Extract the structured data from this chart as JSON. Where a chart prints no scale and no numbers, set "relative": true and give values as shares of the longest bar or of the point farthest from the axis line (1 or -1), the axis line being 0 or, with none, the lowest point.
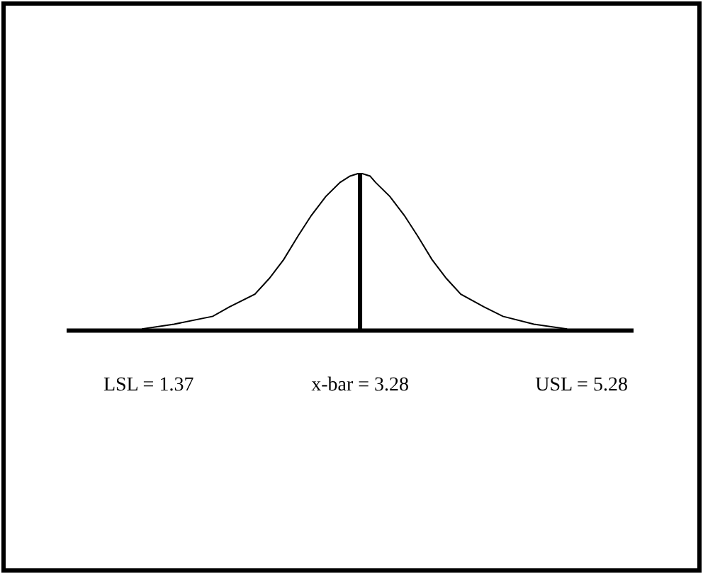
{
  "chart_data": {
    "type": "line",
    "relative": true,
    "tick_labels": "x",
    "x": [
      1.31,
      1.6,
      1.95,
      2.1,
      2.33,
      2.46,
      2.59,
      2.72,
      2.84,
      2.97,
      3.1,
      3.19,
      3.28,
      3.37,
      3.42,
      3.55,
      3.68,
      3.8,
      3.93,
      4.06,
      4.19,
      4.4,
      4.57,
      4.85,
      5.15
    ],
    "xlim": [
      0.63,
      5.75
    ],
    "xticks": [
      {
        "value": 1.37,
        "label": "LSL = 1.37"
      },
      {
        "value": 3.28,
        "label": "x-bar = 3.28"
      },
      {
        "value": 5.28,
        "label": "USL = 5.28"
      }
    ],
    "series": [
      {
        "color": "#000000",
        "values": [
          0.01,
          0.04,
          0.09,
          0.15,
          0.23,
          0.33,
          0.45,
          0.6,
          0.73,
          0.85,
          0.94,
          0.98,
          1,
          0.98,
          0.94,
          0.85,
          0.73,
          0.6,
          0.45,
          0.33,
          0.23,
          0.15,
          0.09,
          0.04,
          0.01
        ]
      }
    ],
    "ref_lines": [
      {
        "axis": "x",
        "value": 3.28,
        "color": "#000000"
      }
    ]
  }
}
